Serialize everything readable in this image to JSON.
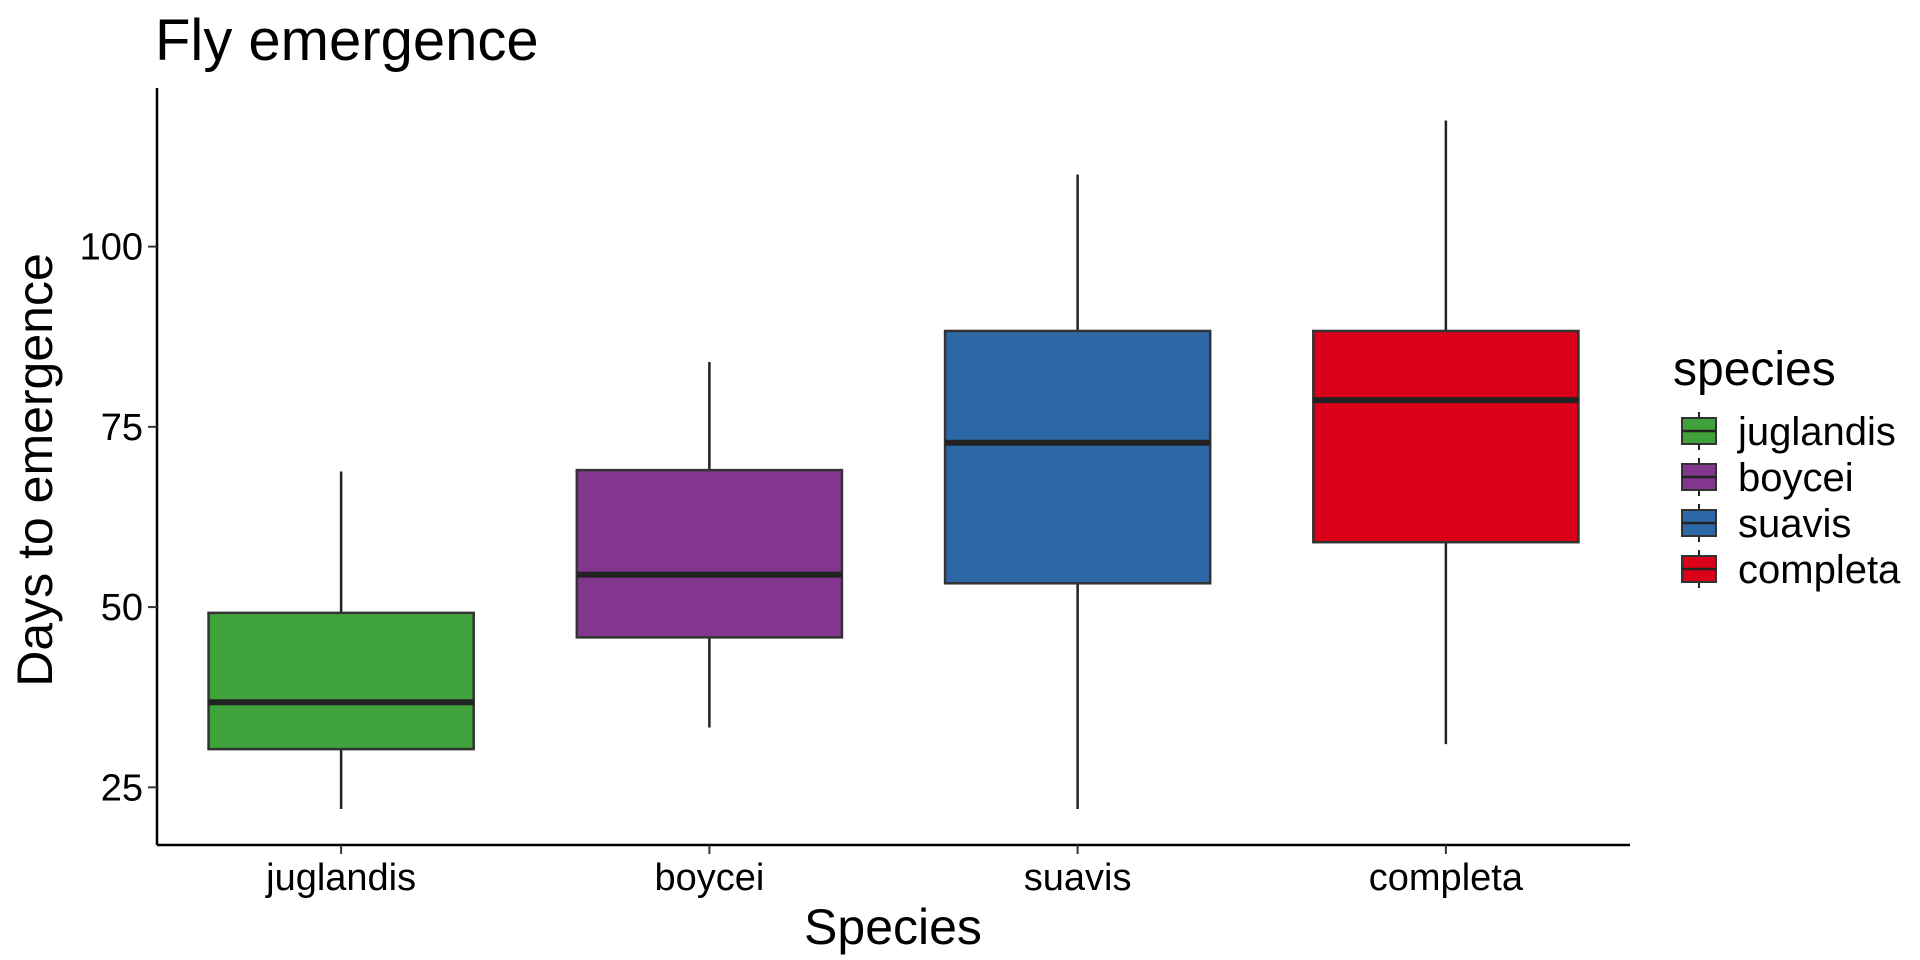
{
  "chart_data": {
    "type": "boxplot",
    "title": "Fly emergence",
    "xlabel": "Species",
    "ylabel": "Days to emergence",
    "ylim": [
      17,
      122
    ],
    "yticks": [
      25,
      50,
      75,
      100
    ],
    "grid": false,
    "legend": {
      "title": "species",
      "position": "right"
    },
    "categories": [
      "juglandis",
      "boycei",
      "suavis",
      "completa"
    ],
    "boxes": [
      {
        "name": "juglandis",
        "min": 22,
        "q1": 30.3,
        "median": 36.8,
        "q3": 49.2,
        "max": 68.8,
        "color": "#3fa23a"
      },
      {
        "name": "boycei",
        "min": 33.3,
        "q1": 45.8,
        "median": 54.5,
        "q3": 69.0,
        "max": 84.0,
        "color": "#83368e"
      },
      {
        "name": "suavis",
        "min": 22,
        "q1": 53.3,
        "median": 72.8,
        "q3": 88.3,
        "max": 110.0,
        "color": "#2d68a6"
      },
      {
        "name": "completa",
        "min": 31.0,
        "q1": 59.0,
        "median": 78.7,
        "q3": 88.3,
        "max": 117.5,
        "color": "#da001a"
      }
    ]
  }
}
